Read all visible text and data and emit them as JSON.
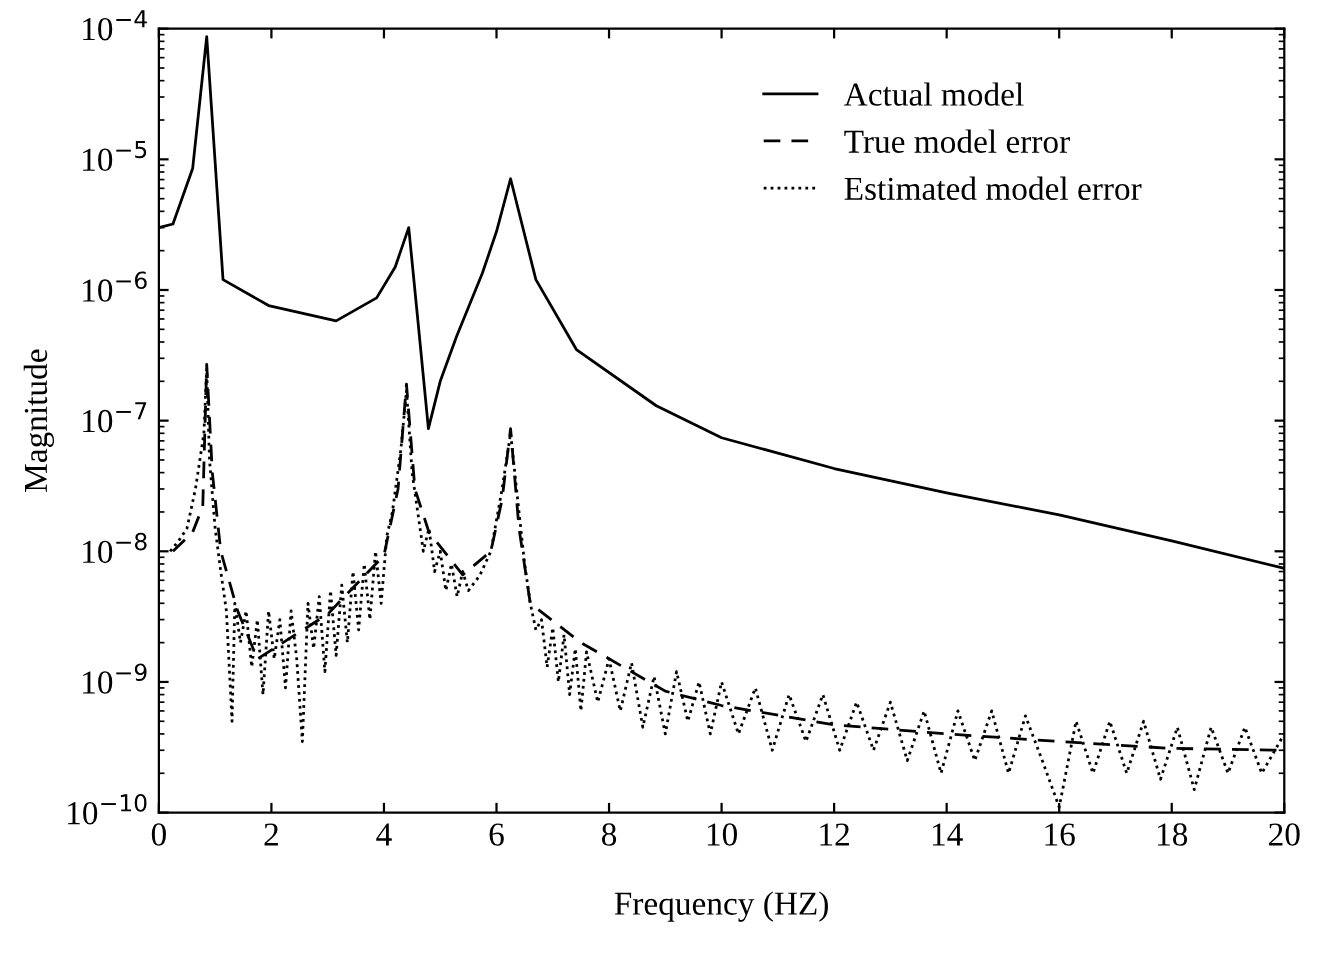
{
  "chart_data": {
    "type": "line",
    "xlabel": "Frequency (HZ)",
    "ylabel": "Magnitude",
    "log": "y",
    "grid": false,
    "legend": "top right",
    "xlim": [
      0,
      20
    ],
    "xticks": [
      0,
      2,
      4,
      6,
      8,
      10,
      12,
      14,
      16,
      18,
      20
    ],
    "ylim": [
      1e-10,
      0.0001
    ],
    "yticks": [
      {
        "value": 1e-10,
        "label": "10$^{−10}$"
      },
      {
        "value": 1e-09,
        "label": "10$^{−9}$"
      },
      {
        "value": 1e-08,
        "label": "10$^{−8}$"
      },
      {
        "value": 1e-07,
        "label": "10$^{−7}$"
      },
      {
        "value": 1e-06,
        "label": "10$^{−6}$"
      },
      {
        "value": 1e-05,
        "label": "10$^{−5}$"
      },
      {
        "value": 0.0001,
        "label": "10$^{−4}$"
      }
    ],
    "series": [
      {
        "name": "Actual model",
        "color": "#000000",
        "line_style": "solid",
        "x": [
          0,
          0.25,
          0.6,
          0.85,
          1.14,
          1.95,
          3.15,
          3.87,
          4.2,
          4.44,
          4.6,
          4.79,
          5.0,
          5.29,
          5.75,
          6.0,
          6.25,
          6.7,
          7.42,
          8.84,
          10,
          12,
          14,
          16,
          18,
          20
        ],
        "values": [
          3e-06,
          3.2e-06,
          8.5e-06,
          8.7e-05,
          1.2e-06,
          7.6e-07,
          5.8e-07,
          8.7e-07,
          1.5e-06,
          3e-06,
          6e-07,
          8.7e-08,
          2e-07,
          4.4e-07,
          1.35e-06,
          2.8e-06,
          7.1e-06,
          1.2e-06,
          3.5e-07,
          1.3e-07,
          7.4e-08,
          4.3e-08,
          2.8e-08,
          1.9e-08,
          1.2e-08,
          7.4e-09
        ]
      },
      {
        "name": "True model error",
        "color": "#000000",
        "line_style": "dashed",
        "x": [
          0.25,
          0.6,
          0.78,
          0.85,
          0.95,
          1.1,
          1.4,
          1.75,
          3,
          4,
          4.25,
          4.4,
          4.55,
          4.8,
          5.4,
          5.9,
          6.1,
          6.25,
          6.4,
          6.6,
          7.5,
          9,
          10,
          12,
          14,
          16,
          18,
          20
        ],
        "values": [
          1e-08,
          1.4e-08,
          2.2e-08,
          2.7e-07,
          4e-08,
          1e-08,
          3.5e-09,
          1.5e-09,
          3.3e-09,
          9.3e-09,
          3e-08,
          1.9e-07,
          3e-08,
          1.4e-08,
          6.6e-09,
          1e-08,
          2.5e-08,
          8.7e-08,
          1.5e-08,
          4e-09,
          2e-09,
          8.5e-10,
          6.6e-10,
          4.7e-10,
          4e-10,
          3.5e-10,
          3.1e-10,
          3e-10
        ]
      },
      {
        "name": "Estimated model error",
        "color": "#000000",
        "line_style": "dotted",
        "x": [
          0.2,
          0.35,
          0.5,
          0.65,
          0.8,
          0.85,
          0.9,
          1.0,
          1.1,
          1.2,
          1.3,
          1.35,
          1.45,
          1.55,
          1.65,
          1.75,
          1.85,
          1.95,
          2.05,
          2.15,
          2.25,
          2.35,
          2.45,
          2.55,
          2.65,
          2.75,
          2.85,
          2.95,
          3.05,
          3.15,
          3.25,
          3.35,
          3.45,
          3.55,
          3.65,
          3.75,
          3.85,
          3.95,
          4.05,
          4.15,
          4.3,
          4.4,
          4.5,
          4.6,
          4.7,
          4.8,
          4.9,
          5.0,
          5.1,
          5.2,
          5.3,
          5.4,
          5.5,
          5.7,
          5.9,
          6.1,
          6.25,
          6.4,
          6.5,
          6.6,
          6.7,
          6.8,
          6.9,
          7.0,
          7.1,
          7.2,
          7.3,
          7.4,
          7.5,
          7.6,
          7.8,
          8.0,
          8.2,
          8.4,
          8.6,
          8.8,
          9.0,
          9.2,
          9.4,
          9.6,
          9.8,
          10.0,
          10.3,
          10.6,
          10.9,
          11.2,
          11.5,
          11.8,
          12.1,
          12.4,
          12.7,
          13.0,
          13.3,
          13.6,
          13.9,
          14.2,
          14.5,
          14.8,
          15.1,
          15.4,
          15.7,
          16.0,
          16.3,
          16.6,
          16.9,
          17.2,
          17.5,
          17.8,
          18.1,
          18.4,
          18.7,
          19.0,
          19.3,
          19.6,
          20.0
        ],
        "values": [
          1e-08,
          1.2e-08,
          1.5e-08,
          3e-08,
          8e-08,
          2.5e-07,
          5e-08,
          1.5e-08,
          7e-09,
          3.5e-09,
          5e-10,
          4e-09,
          2e-09,
          3.5e-09,
          1.3e-09,
          3e-09,
          8e-10,
          3.5e-09,
          1.5e-09,
          3e-09,
          9e-10,
          3.5e-09,
          1.5e-09,
          3.5e-10,
          4e-09,
          1.8e-09,
          4.5e-09,
          1.2e-09,
          5e-09,
          1.6e-09,
          5.5e-09,
          2e-09,
          7e-09,
          2.5e-09,
          8e-09,
          3e-09,
          1e-08,
          4e-09,
          1.3e-08,
          2e-08,
          6e-08,
          1.7e-07,
          4e-08,
          2e-08,
          1e-08,
          1.5e-08,
          7e-09,
          1e-08,
          5e-09,
          8e-09,
          4.5e-09,
          7e-09,
          5e-09,
          6.5e-09,
          1e-08,
          3e-08,
          8e-08,
          2e-08,
          8e-09,
          4e-09,
          2.5e-09,
          3e-09,
          1.3e-09,
          2.6e-09,
          1e-09,
          2.3e-09,
          8e-10,
          1.8e-09,
          6e-10,
          1.7e-09,
          7e-10,
          1.5e-09,
          6e-10,
          1.4e-09,
          4.5e-10,
          1.1e-09,
          4e-10,
          1.2e-09,
          5e-10,
          1e-09,
          4e-10,
          1e-09,
          4e-10,
          9e-10,
          3e-10,
          8e-10,
          3.5e-10,
          8e-10,
          3e-10,
          7e-10,
          3e-10,
          7e-10,
          2.5e-10,
          6e-10,
          2e-10,
          6e-10,
          2.5e-10,
          6e-10,
          2e-10,
          5.5e-10,
          2.5e-10,
          1.1e-10,
          5e-10,
          2e-10,
          5e-10,
          2e-10,
          5e-10,
          1.8e-10,
          4.5e-10,
          1.5e-10,
          4.5e-10,
          2e-10,
          4.5e-10,
          2e-10,
          4e-10
        ]
      }
    ]
  }
}
